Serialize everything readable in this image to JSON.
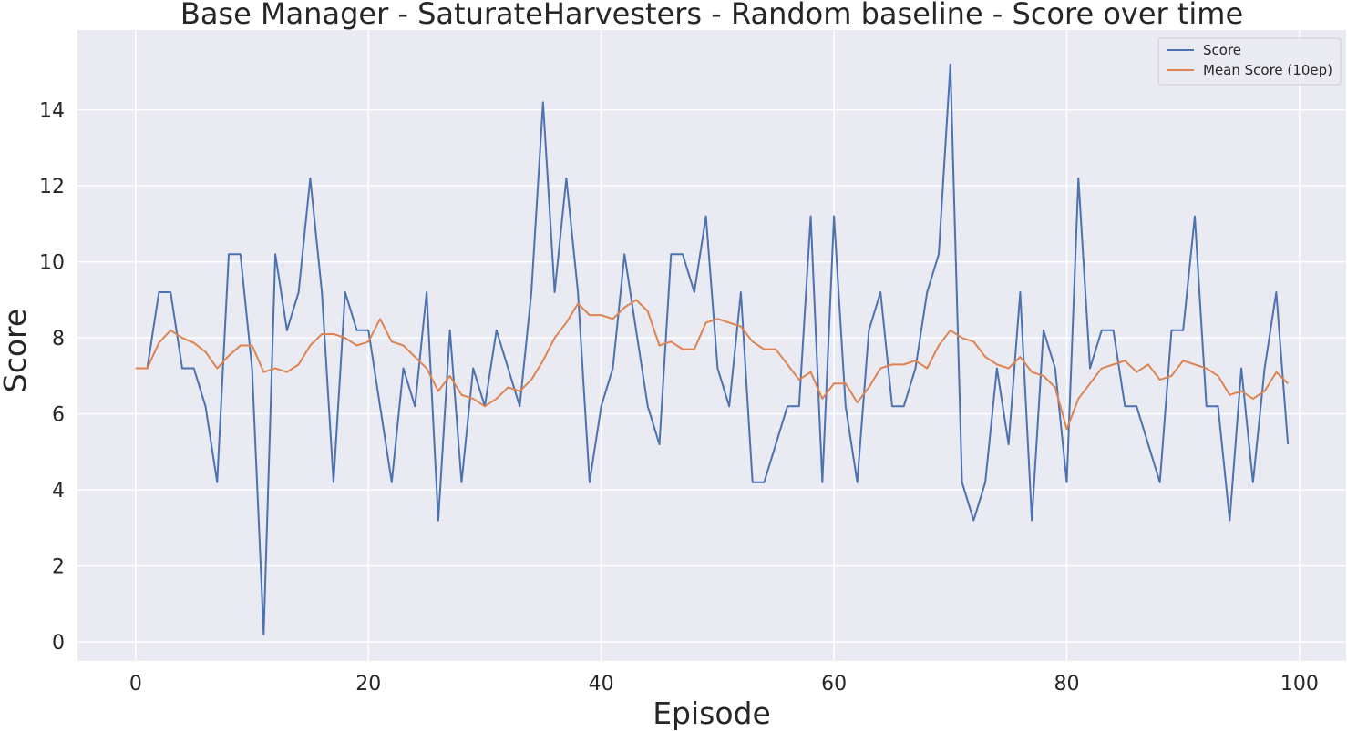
{
  "chart_data": {
    "type": "line",
    "title": "Base Manager - SaturateHarvesters - Random baseline - Score over time",
    "xlabel": "Episode",
    "ylabel": "Score",
    "xlim": [
      -5,
      104
    ],
    "ylim": [
      -0.5,
      16.1
    ],
    "x_ticks": [
      0,
      20,
      40,
      60,
      80,
      100
    ],
    "y_ticks": [
      0,
      2,
      4,
      6,
      8,
      10,
      12,
      14
    ],
    "grid": true,
    "background": "#eaeaf2",
    "legend_position": "top-right",
    "x": [
      0,
      1,
      2,
      3,
      4,
      5,
      6,
      7,
      8,
      9,
      10,
      11,
      12,
      13,
      14,
      15,
      16,
      17,
      18,
      19,
      20,
      21,
      22,
      23,
      24,
      25,
      26,
      27,
      28,
      29,
      30,
      31,
      32,
      33,
      34,
      35,
      36,
      37,
      38,
      39,
      40,
      41,
      42,
      43,
      44,
      45,
      46,
      47,
      48,
      49,
      50,
      51,
      52,
      53,
      54,
      55,
      56,
      57,
      58,
      59,
      60,
      61,
      62,
      63,
      64,
      65,
      66,
      67,
      68,
      69,
      70,
      71,
      72,
      73,
      74,
      75,
      76,
      77,
      78,
      79,
      80,
      81,
      82,
      83,
      84,
      85,
      86,
      87,
      88,
      89,
      90,
      91,
      92,
      93,
      94,
      95,
      96,
      97,
      98,
      99
    ],
    "series": [
      {
        "name": "Score",
        "color": "#4c72b0",
        "values": [
          7.2,
          7.2,
          9.2,
          9.2,
          7.2,
          7.2,
          6.2,
          4.2,
          10.2,
          10.2,
          7.2,
          0.2,
          10.2,
          8.2,
          9.2,
          12.2,
          9.2,
          4.2,
          9.2,
          8.2,
          8.2,
          6.2,
          4.2,
          7.2,
          6.2,
          9.2,
          3.2,
          8.2,
          4.2,
          7.2,
          6.2,
          8.2,
          7.2,
          6.2,
          9.2,
          14.2,
          9.2,
          12.2,
          9.2,
          4.2,
          6.2,
          7.2,
          10.2,
          8.2,
          6.2,
          5.2,
          10.2,
          10.2,
          9.2,
          11.2,
          7.2,
          6.2,
          9.2,
          4.2,
          4.2,
          5.2,
          6.2,
          6.2,
          11.2,
          4.2,
          11.2,
          6.2,
          4.2,
          8.2,
          9.2,
          6.2,
          6.2,
          7.2,
          9.2,
          10.2,
          15.2,
          4.2,
          3.2,
          4.2,
          7.2,
          5.2,
          9.2,
          3.2,
          8.2,
          7.2,
          4.2,
          12.2,
          7.2,
          8.2,
          8.2,
          6.2,
          6.2,
          5.2,
          4.2,
          8.2,
          8.2,
          11.2,
          6.2,
          6.2,
          3.2,
          7.2,
          4.2,
          7.2,
          9.2,
          5.2
        ]
      },
      {
        "name": "Mean Score (10ep)",
        "color": "#dd8452",
        "values": [
          7.2,
          7.2,
          7.87,
          8.2,
          8.0,
          7.87,
          7.63,
          7.2,
          7.53,
          7.8,
          7.8,
          7.1,
          7.2,
          7.1,
          7.3,
          7.8,
          8.1,
          8.1,
          8.0,
          7.8,
          7.9,
          8.5,
          7.9,
          7.8,
          7.5,
          7.2,
          6.6,
          7.0,
          6.5,
          6.4,
          6.2,
          6.4,
          6.7,
          6.6,
          6.9,
          7.4,
          8.0,
          8.4,
          8.9,
          8.6,
          8.6,
          8.5,
          8.8,
          9.0,
          8.7,
          7.8,
          7.9,
          7.7,
          7.7,
          8.4,
          8.5,
          8.4,
          8.3,
          7.9,
          7.7,
          7.7,
          7.3,
          6.9,
          7.1,
          6.4,
          6.8,
          6.8,
          6.3,
          6.7,
          7.2,
          7.3,
          7.3,
          7.4,
          7.2,
          7.8,
          8.2,
          8.0,
          7.9,
          7.5,
          7.3,
          7.2,
          7.5,
          7.1,
          7.0,
          6.7,
          5.6,
          6.4,
          6.8,
          7.2,
          7.3,
          7.4,
          7.1,
          7.3,
          6.9,
          7.0,
          7.4,
          7.3,
          7.2,
          7.0,
          6.5,
          6.6,
          6.4,
          6.6,
          7.1,
          6.8
        ]
      }
    ]
  }
}
